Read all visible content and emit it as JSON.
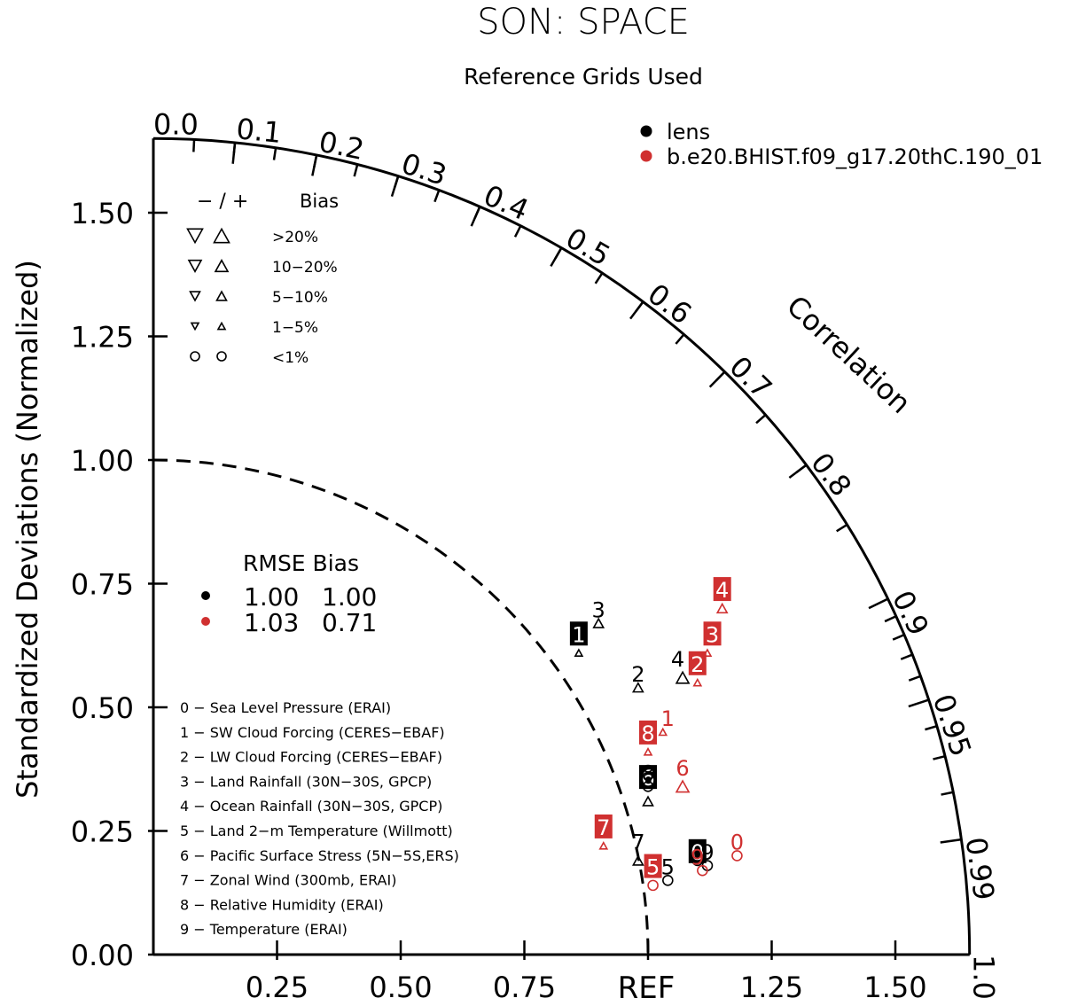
{
  "chart_data": {
    "type": "scatter",
    "subtype": "taylor-diagram",
    "title": "SON: SPACE",
    "subtitle": "Reference Grids Used",
    "ylabel": "Standardized Deviations (Normalized)",
    "arc_label": "Correlation",
    "ref_label": "REF",
    "std_range": [
      0,
      1.65
    ],
    "y_ticks": [
      "0.00",
      "0.25",
      "0.50",
      "0.75",
      "1.00",
      "1.25",
      "1.50"
    ],
    "x_ticks": [
      "0.25",
      "0.50",
      "0.75",
      "1.25",
      "1.50"
    ],
    "corr_labels": [
      "0.0",
      "0.1",
      "0.2",
      "0.3",
      "0.4",
      "0.5",
      "0.6",
      "0.7",
      "0.8",
      "0.9",
      "0.95",
      "0.99",
      "1.0"
    ],
    "legend": [
      {
        "name": "lens",
        "color": "#000000"
      },
      {
        "name": "b.e20.BHIST.f09_g17.20thC.190_01",
        "color": "#d03030"
      }
    ],
    "bias_legend": {
      "header_sign": "− / +",
      "header_label": "Bias",
      "rows": [
        {
          "label": ">20%",
          "size": 17
        },
        {
          "label": "10−20%",
          "size": 14
        },
        {
          "label": "5−10%",
          "size": 11
        },
        {
          "label": "1−5%",
          "size": 8
        },
        {
          "label": "<1%",
          "size": 0
        }
      ]
    },
    "rmse_table": {
      "header": "RMSE Bias",
      "rows": [
        {
          "rmse": "1.00",
          "bias": "1.00",
          "color": "#000000"
        },
        {
          "rmse": "1.03",
          "bias": "0.71",
          "color": "#d03030"
        }
      ]
    },
    "variable_key": [
      "0 − Sea Level Pressure (ERAI)",
      "1 − SW Cloud Forcing (CERES−EBAF)",
      "2 − LW Cloud Forcing (CERES−EBAF)",
      "3 − Land Rainfall (30N−30S, GPCP)",
      "4 − Ocean Rainfall (30N−30S, GPCP)",
      "5 − Land 2−m Temperature (Willmott)",
      "6 − Pacific Surface Stress (5N−5S,ERS)",
      "7 − Zonal Wind (300mb, ERAI)",
      "8 − Relative Humidity (ERAI)",
      "9 − Temperature (ERAI)"
    ],
    "series": [
      {
        "name": "lens",
        "color": "#000000",
        "points": [
          {
            "id": "0",
            "x": 1.1,
            "y": 0.19,
            "bias": "<1%",
            "boxed": true,
            "bx": 1.1,
            "by": 0.21
          },
          {
            "id": "1",
            "x": 0.86,
            "y": 0.61,
            "bias": "1-5%",
            "boxed": true,
            "bx": 0.86,
            "by": 0.65
          },
          {
            "id": "2",
            "x": 0.98,
            "y": 0.54,
            "bias": "5-10%",
            "boxed": false,
            "bx": 0.98,
            "by": 0.57
          },
          {
            "id": "3",
            "x": 0.9,
            "y": 0.67,
            "bias": "5-10%",
            "boxed": false,
            "bx": 0.9,
            "by": 0.7
          },
          {
            "id": "4",
            "x": 1.07,
            "y": 0.56,
            "bias": "10-20%",
            "boxed": false,
            "bx": 1.06,
            "by": 0.6
          },
          {
            "id": "5",
            "x": 1.04,
            "y": 0.15,
            "bias": "<1%",
            "boxed": false,
            "bx": 1.04,
            "by": 0.18
          },
          {
            "id": "6",
            "x": 1.0,
            "y": 0.31,
            "bias": "5-10%",
            "boxed": true,
            "bx": 1.0,
            "by": 0.36
          },
          {
            "id": "7",
            "x": 0.98,
            "y": 0.19,
            "bias": "5-10%",
            "boxed": false,
            "bx": 0.98,
            "by": 0.23
          },
          {
            "id": "8",
            "x": 1.0,
            "y": 0.34,
            "bias": "<1%",
            "boxed": false,
            "bx": 1.0,
            "by": 0.37
          },
          {
            "id": "9",
            "x": 1.12,
            "y": 0.18,
            "bias": "<1%",
            "boxed": false,
            "bx": 1.12,
            "by": 0.21
          }
        ]
      },
      {
        "name": "b.e20.BHIST.f09_g17.20thC.190_01",
        "color": "#d03030",
        "points": [
          {
            "id": "0",
            "x": 1.18,
            "y": 0.2,
            "bias": "<1%",
            "boxed": false,
            "bx": 1.18,
            "by": 0.23
          },
          {
            "id": "1",
            "x": 1.03,
            "y": 0.45,
            "bias": "1-5%",
            "boxed": false,
            "bx": 1.04,
            "by": 0.48
          },
          {
            "id": "2",
            "x": 1.1,
            "y": 0.55,
            "bias": "1-5%",
            "boxed": true,
            "bx": 1.1,
            "by": 0.59
          },
          {
            "id": "3",
            "x": 1.12,
            "y": 0.61,
            "bias": "1-5%",
            "boxed": true,
            "bx": 1.13,
            "by": 0.65
          },
          {
            "id": "4",
            "x": 1.15,
            "y": 0.7,
            "bias": "5-10%",
            "boxed": true,
            "bx": 1.15,
            "by": 0.74
          },
          {
            "id": "5",
            "x": 1.01,
            "y": 0.14,
            "bias": "<1%",
            "boxed": true,
            "bx": 1.01,
            "by": 0.18
          },
          {
            "id": "6",
            "x": 1.07,
            "y": 0.34,
            "bias": "10-20%",
            "boxed": false,
            "bx": 1.07,
            "by": 0.38
          },
          {
            "id": "7",
            "x": 0.91,
            "y": 0.22,
            "bias": "1-5%",
            "boxed": true,
            "bx": 0.91,
            "by": 0.26
          },
          {
            "id": "8",
            "x": 1.0,
            "y": 0.41,
            "bias": "1-5%",
            "boxed": true,
            "bx": 1.0,
            "by": 0.45
          },
          {
            "id": "9",
            "x": 1.11,
            "y": 0.17,
            "bias": "<1%",
            "boxed": false,
            "bx": 1.1,
            "by": 0.2
          }
        ]
      }
    ]
  }
}
